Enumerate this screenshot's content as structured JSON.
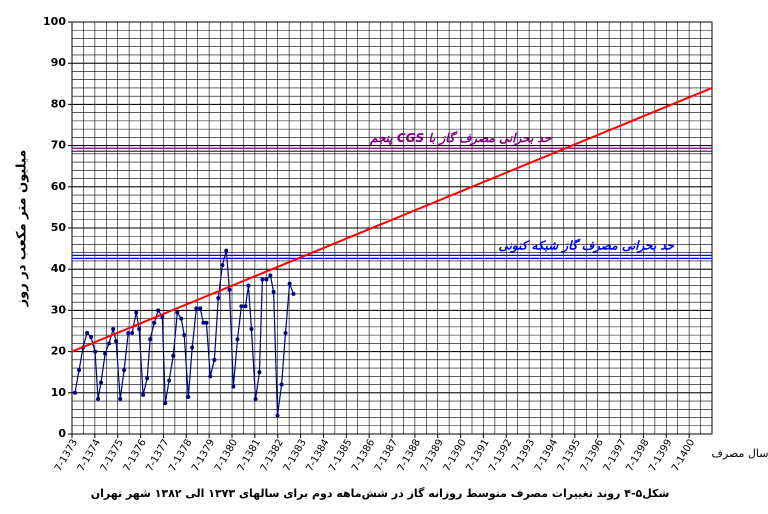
{
  "chart_data": {
    "type": "line",
    "title": "شکل۵-۴ روند تغییرات مصرف متوسط روزانه گاز در شش‌ماهه دوم برای سالهای ۱۳۷۳ الی ۱۳۸۲ شهر تهران",
    "y_label": "میلیون متر مکعب در روز",
    "x_label": "سال مصرف",
    "xlim": [
      1373,
      1401
    ],
    "ylim": [
      0,
      100
    ],
    "yticks": [
      0,
      10,
      20,
      30,
      40,
      50,
      60,
      70,
      80,
      90,
      100
    ],
    "xticks": [
      {
        "value": 1373,
        "label": "7-1373"
      },
      {
        "value": 1374,
        "label": "7-1374"
      },
      {
        "value": 1375,
        "label": "7-1375"
      },
      {
        "value": 1376,
        "label": "7-1376"
      },
      {
        "value": 1377,
        "label": "7-1377"
      },
      {
        "value": 1378,
        "label": "7-1378"
      },
      {
        "value": 1379,
        "label": "7-1379"
      },
      {
        "value": 1380,
        "label": "7-1380"
      },
      {
        "value": 1381,
        "label": "7-1381"
      },
      {
        "value": 1382,
        "label": "7-1382"
      },
      {
        "value": 1383,
        "label": "7-1383"
      },
      {
        "value": 1384,
        "label": "7-1384"
      },
      {
        "value": 1385,
        "label": "7-1385"
      },
      {
        "value": 1386,
        "label": "7-1386"
      },
      {
        "value": 1387,
        "label": "7-1387"
      },
      {
        "value": 1388,
        "label": "7-1388"
      },
      {
        "value": 1389,
        "label": "7-1389"
      },
      {
        "value": 1390,
        "label": "7-1390"
      },
      {
        "value": 1391,
        "label": "7-1391"
      },
      {
        "value": 1392,
        "label": "7-1392"
      },
      {
        "value": 1393,
        "label": "7-1393"
      },
      {
        "value": 1394,
        "label": "7-1394"
      },
      {
        "value": 1395,
        "label": "7-1395"
      },
      {
        "value": 1396,
        "label": "7-1396"
      },
      {
        "value": 1397,
        "label": "7-1397"
      },
      {
        "value": 1398,
        "label": "7-1398"
      },
      {
        "value": 1399,
        "label": "7-1399"
      },
      {
        "value": 1400,
        "label": "7-1400"
      }
    ],
    "grid": true,
    "minor_grid": {
      "x": 0.5,
      "y": 2
    },
    "series": [
      {
        "color": "#000080",
        "markers": true,
        "x": [
          1373.13,
          1373.31,
          1373.48,
          1373.66,
          1373.83,
          1374.01,
          1374.14,
          1374.27,
          1374.45,
          1374.62,
          1374.8,
          1374.93,
          1375.11,
          1375.28,
          1375.46,
          1375.63,
          1375.81,
          1375.94,
          1376.11,
          1376.29,
          1376.42,
          1376.6,
          1376.77,
          1376.95,
          1377.08,
          1377.25,
          1377.43,
          1377.61,
          1377.78,
          1377.91,
          1378.09,
          1378.26,
          1378.44,
          1378.61,
          1378.75,
          1378.88,
          1379.05,
          1379.23,
          1379.4,
          1379.58,
          1379.75,
          1379.89,
          1380.06,
          1380.24,
          1380.41,
          1380.59,
          1380.72,
          1380.85,
          1381.03,
          1381.2,
          1381.33,
          1381.51,
          1381.68,
          1381.82,
          1381.99,
          1382.17,
          1382.34,
          1382.52,
          1382.69
        ],
        "values": [
          10,
          15.5,
          21,
          24.5,
          23.5,
          20,
          8.5,
          12.5,
          19.5,
          22,
          25.5,
          22.5,
          8.5,
          15.5,
          24.5,
          24.5,
          29.5,
          25.5,
          9.5,
          13.5,
          23,
          27,
          30,
          28.5,
          7.5,
          13,
          19,
          29.5,
          28,
          24,
          9,
          21,
          30.5,
          30.5,
          27,
          27,
          14,
          18,
          33,
          41,
          44.5,
          35,
          11.5,
          23,
          31,
          31,
          36,
          25.5,
          8.5,
          15,
          37.5,
          37.5,
          38.5,
          34.5,
          4.5,
          12,
          24.5,
          36.5,
          34
        ]
      },
      {
        "color": "#ff0000",
        "markers": false,
        "x": [
          1373,
          1401
        ],
        "values": [
          20,
          84
        ]
      }
    ],
    "reference_lines": [
      {
        "value": 69,
        "color": "#800080",
        "label": "حد بحرانی مصرف گاز با CGS پنجم",
        "label_x": 1390
      },
      {
        "value": 43,
        "color": "#0000ff",
        "label": "حد بحرانی مصرف گاز شبکه کنونی",
        "label_x": 1395.5
      }
    ]
  }
}
